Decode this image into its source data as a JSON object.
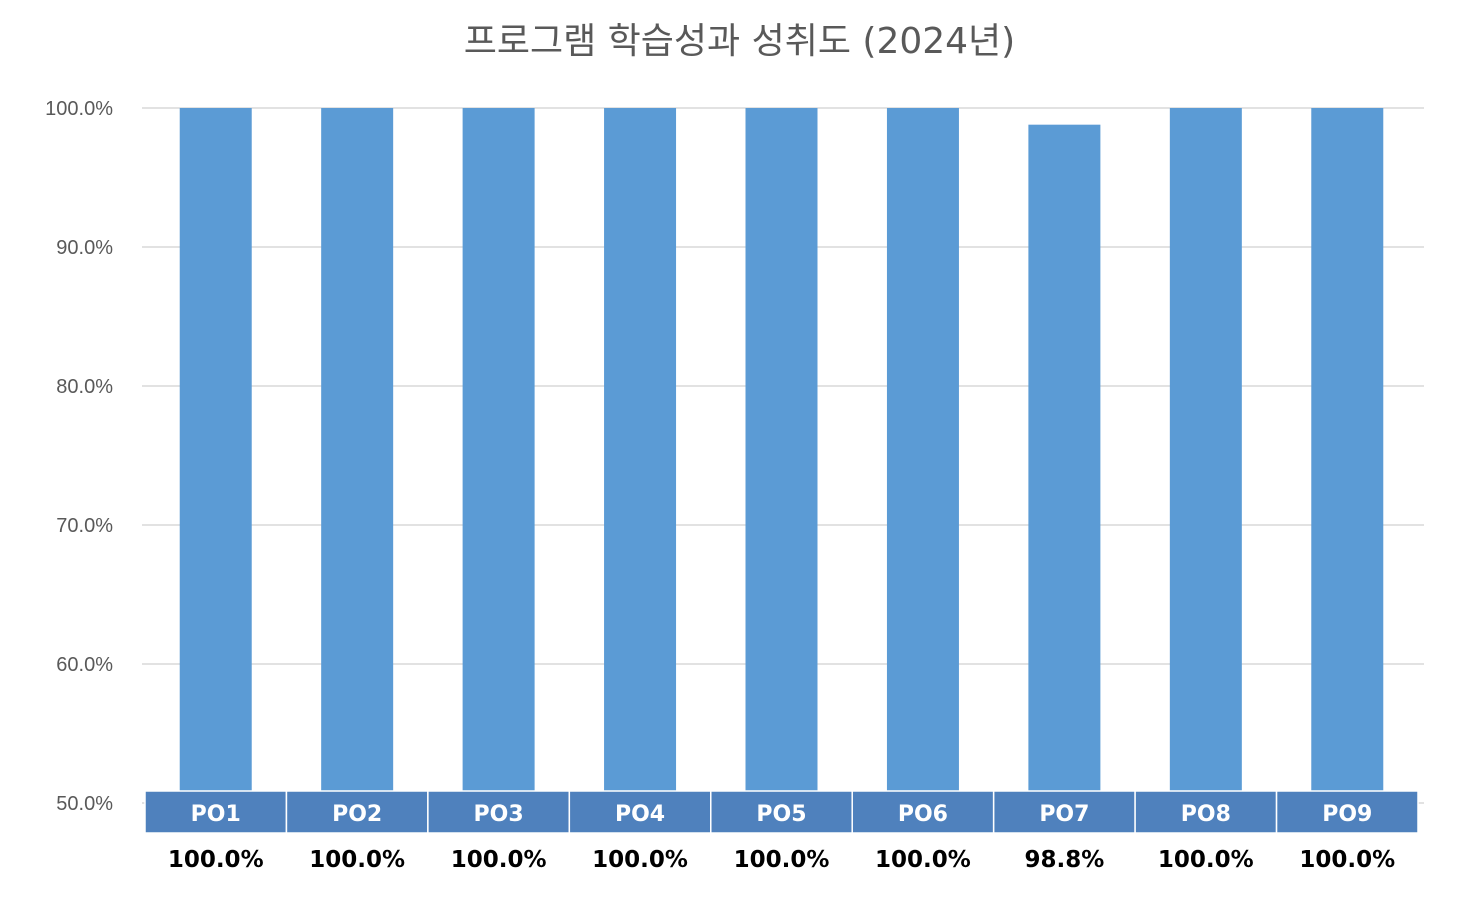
{
  "chart_data": {
    "type": "bar",
    "title": "프로그램 학습성과 성취도 (2024년)",
    "categories": [
      "PO1",
      "PO2",
      "PO3",
      "PO4",
      "PO5",
      "PO6",
      "PO7",
      "PO8",
      "PO9"
    ],
    "values": [
      100.0,
      100.0,
      100.0,
      100.0,
      100.0,
      100.0,
      98.8,
      100.0,
      100.0
    ],
    "value_labels": [
      "100.0%",
      "100.0%",
      "100.0%",
      "100.0%",
      "100.0%",
      "100.0%",
      "98.8%",
      "100.0%",
      "100.0%"
    ],
    "y_ticks": [
      "50.0%",
      "60.0%",
      "70.0%",
      "80.0%",
      "90.0%",
      "100.0%"
    ],
    "ylim": [
      50,
      100
    ],
    "grid": true,
    "legend": "none",
    "bar_color": "#5b9bd5",
    "category_band_color": "#4f81bd",
    "gridline_color": "#d9d9d9"
  }
}
